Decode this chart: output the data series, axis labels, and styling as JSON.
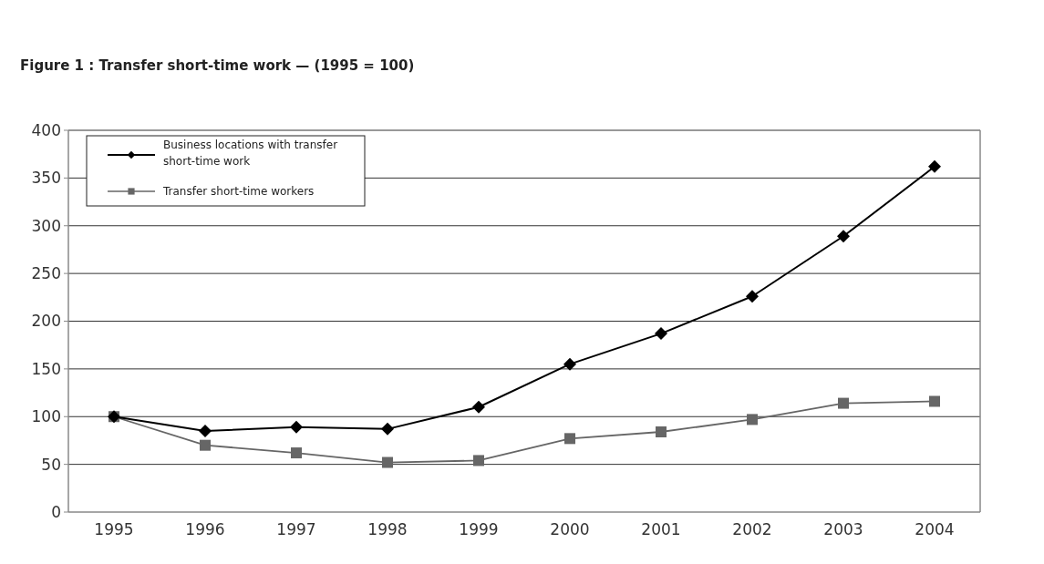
{
  "chart_data": {
    "type": "line",
    "title": "Figure 1 : Transfer short-time work — (1995 = 100)",
    "categories": [
      "1995",
      "1996",
      "1997",
      "1998",
      "1999",
      "2000",
      "2001",
      "2002",
      "2003",
      "2004"
    ],
    "series": [
      {
        "name": "Business locations with transfer short-time work",
        "color": "#000000",
        "marker": "diamond",
        "values": [
          100,
          85,
          89,
          87,
          110,
          155,
          187,
          226,
          289,
          362
        ]
      },
      {
        "name": "Transfer short-time workers",
        "color": "#666666",
        "marker": "square",
        "values": [
          100,
          70,
          62,
          52,
          54,
          77,
          84,
          97,
          114,
          116
        ]
      }
    ],
    "ylim": [
      0,
      400
    ],
    "yticks": [
      0,
      50,
      100,
      150,
      200,
      250,
      300,
      350,
      400
    ],
    "grid": "y",
    "legend": "top left"
  }
}
